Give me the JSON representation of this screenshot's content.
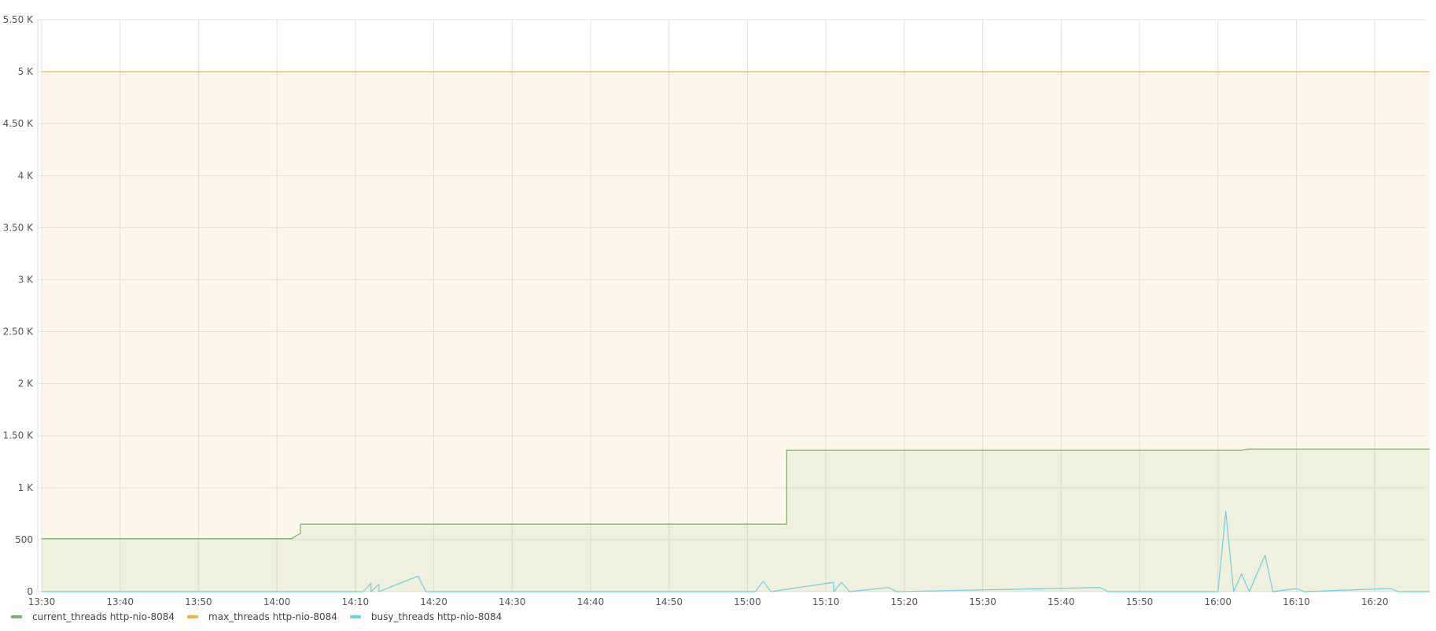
{
  "chart_data": {
    "type": "line",
    "title": "",
    "xlabel": "",
    "ylabel": "",
    "x_ticks": [
      "13:30",
      "13:40",
      "13:50",
      "14:00",
      "14:10",
      "14:20",
      "14:30",
      "14:40",
      "14:50",
      "15:00",
      "15:10",
      "15:20",
      "15:30",
      "15:40",
      "15:50",
      "16:00",
      "16:10",
      "16:20"
    ],
    "y_ticks": [
      "0",
      "500",
      "1 K",
      "1.50 K",
      "2 K",
      "2.50 K",
      "3 K",
      "3.50 K",
      "4 K",
      "4.50 K",
      "5 K",
      "5.50 K"
    ],
    "xlim_minutes_since_13_30": [
      -0.5,
      176.5
    ],
    "ylim": [
      0,
      5500
    ],
    "grid": true,
    "legend_position": "bottom-left",
    "series": [
      {
        "name": "current_threads http-nio-8084",
        "color": "#7eb26d",
        "fill": true,
        "points": [
          [
            "13:30",
            510
          ],
          [
            "14:02",
            510
          ],
          [
            "14:02",
            520
          ],
          [
            "14:03",
            560
          ],
          [
            "14:03",
            650
          ],
          [
            "15:05",
            650
          ],
          [
            "15:05",
            1360
          ],
          [
            "16:03",
            1360
          ],
          [
            "16:04",
            1370
          ],
          [
            "16:27",
            1370
          ]
        ]
      },
      {
        "name": "max_threads http-nio-8084",
        "color": "#eab839",
        "fill": true,
        "points": [
          [
            "13:30",
            5000
          ],
          [
            "16:27",
            5000
          ]
        ]
      },
      {
        "name": "busy_threads http-nio-8084",
        "color": "#6ed0e0",
        "fill": false,
        "points": [
          [
            "13:30",
            0
          ],
          [
            "14:11",
            0
          ],
          [
            "14:12",
            80
          ],
          [
            "14:12",
            0
          ],
          [
            "14:13",
            70
          ],
          [
            "14:13",
            0
          ],
          [
            "14:18",
            150
          ],
          [
            "14:19",
            0
          ],
          [
            "15:01",
            0
          ],
          [
            "15:02",
            100
          ],
          [
            "15:03",
            0
          ],
          [
            "15:11",
            90
          ],
          [
            "15:11",
            0
          ],
          [
            "15:12",
            90
          ],
          [
            "15:13",
            0
          ],
          [
            "15:18",
            40
          ],
          [
            "15:19",
            0
          ],
          [
            "15:45",
            40
          ],
          [
            "15:46",
            0
          ],
          [
            "16:00",
            0
          ],
          [
            "16:01",
            770
          ],
          [
            "16:02",
            0
          ],
          [
            "16:03",
            170
          ],
          [
            "16:04",
            0
          ],
          [
            "16:06",
            350
          ],
          [
            "16:07",
            0
          ],
          [
            "16:10",
            30
          ],
          [
            "16:11",
            0
          ],
          [
            "16:22",
            30
          ],
          [
            "16:23",
            0
          ],
          [
            "16:27",
            0
          ]
        ]
      }
    ]
  }
}
